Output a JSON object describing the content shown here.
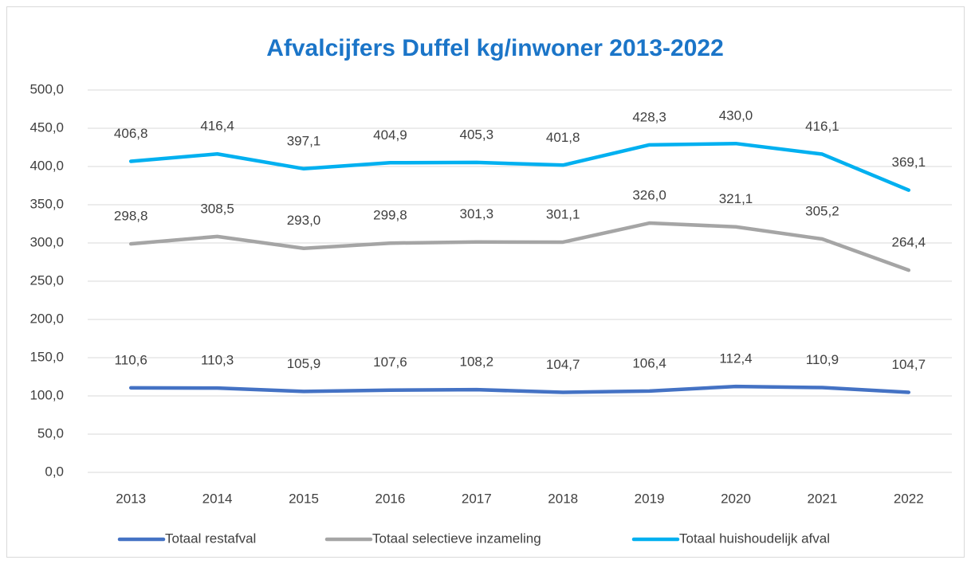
{
  "chart_data": {
    "type": "line",
    "title": "Afvalcijfers Duffel kg/inwoner 2013-2022",
    "categories": [
      "2013",
      "2014",
      "2015",
      "2016",
      "2017",
      "2018",
      "2019",
      "2020",
      "2021",
      "2022"
    ],
    "series": [
      {
        "name": "Totaal restafval",
        "color": "#4472c4",
        "values": [
          110.6,
          110.3,
          105.9,
          107.6,
          108.2,
          104.7,
          106.4,
          112.4,
          110.9,
          104.7
        ],
        "value_labels": [
          "110,6",
          "110,3",
          "105,9",
          "107,6",
          "108,2",
          "104,7",
          "106,4",
          "112,4",
          "110,9",
          "104,7"
        ]
      },
      {
        "name": "Totaal selectieve inzameling",
        "color": "#a5a5a5",
        "values": [
          298.8,
          308.5,
          293.0,
          299.8,
          301.3,
          301.1,
          326.0,
          321.1,
          305.2,
          264.4
        ],
        "value_labels": [
          "298,8",
          "308,5",
          "293,0",
          "299,8",
          "301,3",
          "301,1",
          "326,0",
          "321,1",
          "305,2",
          "264,4"
        ]
      },
      {
        "name": "Totaal huishoudelijk afval",
        "color": "#00b0f0",
        "values": [
          406.8,
          416.4,
          397.1,
          404.9,
          405.3,
          401.8,
          428.3,
          430.0,
          416.1,
          369.1
        ],
        "value_labels": [
          "406,8",
          "416,4",
          "397,1",
          "404,9",
          "405,3",
          "401,8",
          "428,3",
          "430,0",
          "416,1",
          "369,1"
        ]
      }
    ],
    "ylim": [
      0,
      500
    ],
    "yticks": [
      {
        "value": 0,
        "label": "0,0"
      },
      {
        "value": 50,
        "label": "50,0"
      },
      {
        "value": 100,
        "label": "100,0"
      },
      {
        "value": 150,
        "label": "150,0"
      },
      {
        "value": 200,
        "label": "200,0"
      },
      {
        "value": 250,
        "label": "250,0"
      },
      {
        "value": 300,
        "label": "300,0"
      },
      {
        "value": 350,
        "label": "350,0"
      },
      {
        "value": 400,
        "label": "400,0"
      },
      {
        "value": 450,
        "label": "450,0"
      },
      {
        "value": 500,
        "label": "500,0"
      }
    ],
    "grid": true,
    "legend": "bottom"
  }
}
